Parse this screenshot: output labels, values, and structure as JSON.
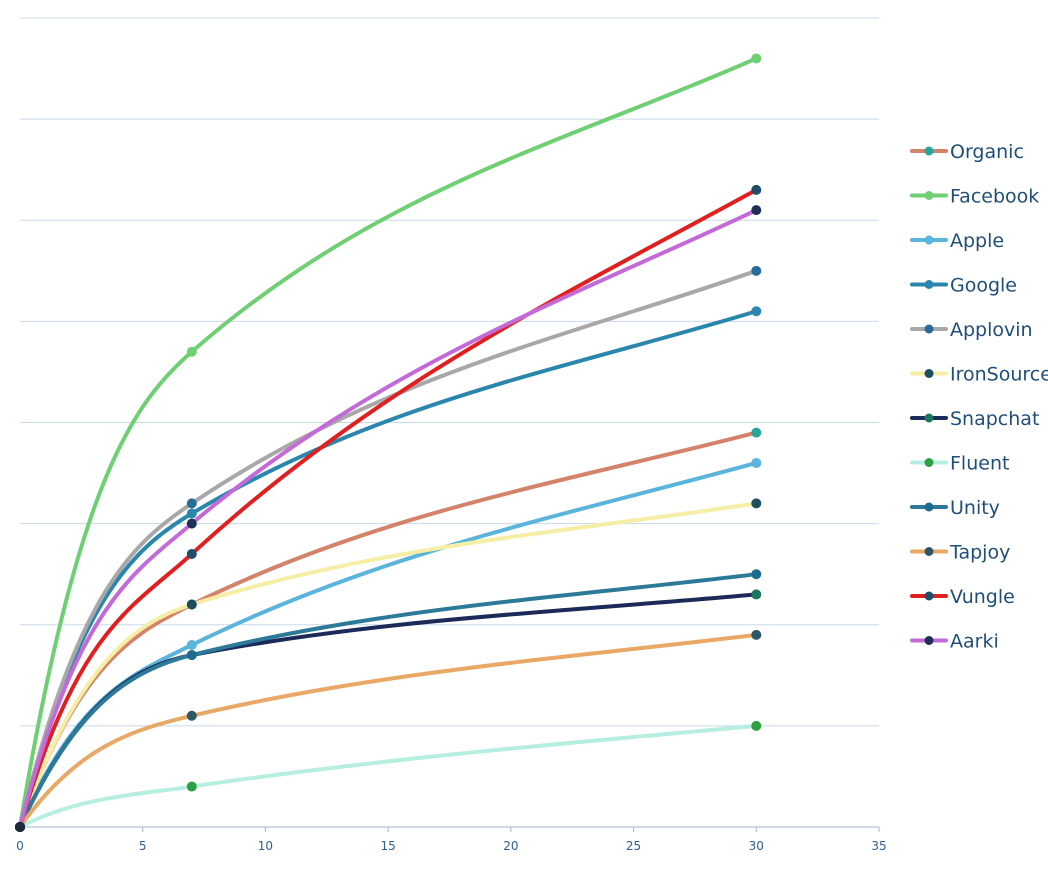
{
  "chart_data": {
    "type": "line",
    "title": "",
    "xlabel": "",
    "ylabel": "",
    "xlim": [
      0,
      35
    ],
    "ylim": [
      0,
      8
    ],
    "x_ticks": [
      0,
      5,
      10,
      15,
      20,
      25,
      30,
      35
    ],
    "grid": true,
    "y_tick_labels_visible": false,
    "legend_placement": "right",
    "x": [
      0,
      7,
      30
    ],
    "series": [
      {
        "name": "Organic",
        "color": "#d4826a",
        "marker_color": "#26a69a",
        "values": [
          0,
          2.2,
          3.9
        ]
      },
      {
        "name": "Facebook",
        "color": "#6fcf73",
        "marker_color": "#6fcf73",
        "values": [
          0,
          4.7,
          7.6
        ]
      },
      {
        "name": "Apple",
        "color": "#5bb4dc",
        "marker_color": "#5bb4dc",
        "values": [
          0,
          1.8,
          3.6
        ]
      },
      {
        "name": "Google",
        "color": "#2a86ad",
        "marker_color": "#2a86ad",
        "values": [
          0,
          3.1,
          5.1
        ]
      },
      {
        "name": "Applovin",
        "color": "#a8a8a8",
        "marker_color": "#2a6c98",
        "values": [
          0,
          3.2,
          5.5
        ]
      },
      {
        "name": "IronSource",
        "color": "#f7eea6",
        "marker_color": "#1d4d5f",
        "values": [
          0,
          2.2,
          3.2
        ]
      },
      {
        "name": "Snapchat",
        "color": "#1c2a5a",
        "marker_color": "#1e7560",
        "values": [
          0,
          1.7,
          2.3
        ]
      },
      {
        "name": "Fluent",
        "color": "#b6efe2",
        "marker_color": "#2ea043",
        "values": [
          0,
          0.4,
          1.0
        ]
      },
      {
        "name": "Unity",
        "color": "#2c7998",
        "marker_color": "#1d6c8e",
        "values": [
          0,
          1.7,
          2.5
        ]
      },
      {
        "name": "Tapjoy",
        "color": "#e9a866",
        "marker_color": "#2b5965",
        "values": [
          0,
          1.1,
          1.9
        ]
      },
      {
        "name": "Vungle",
        "color": "#e11f1f",
        "marker_color": "#1f4e6b",
        "values": [
          0,
          2.7,
          6.3
        ]
      },
      {
        "name": "Aarki",
        "color": "#c46ad8",
        "marker_color": "#1c2f57",
        "values": [
          0,
          3.0,
          6.1
        ]
      }
    ]
  }
}
